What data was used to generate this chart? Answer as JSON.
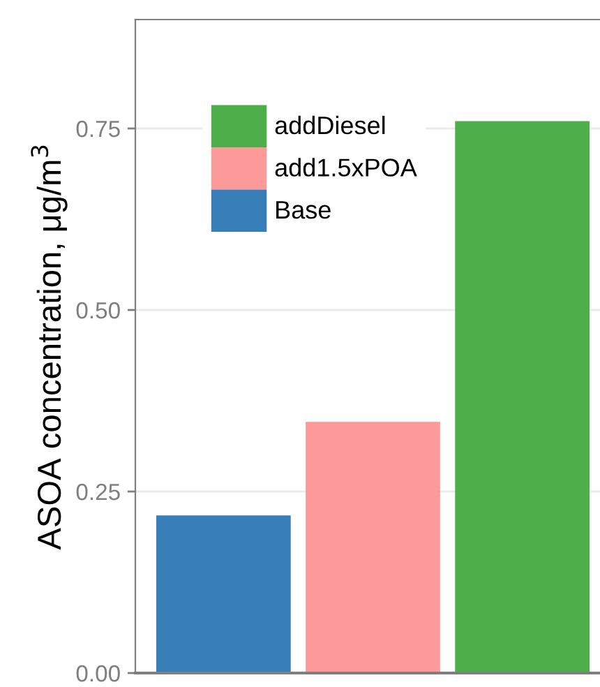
{
  "chart_data": {
    "type": "bar",
    "ylabel": "ASOA concentration, μg/m$^{3}$",
    "categories": [
      null,
      null,
      null
    ],
    "series": [
      {
        "name": "Base",
        "color": "#377eb8",
        "values": [
          0.217,
          null,
          null
        ]
      },
      {
        "name": "add1.5xPOA",
        "color": "#fb9a99",
        "values": [
          null,
          0.346,
          null
        ]
      },
      {
        "name": "addDiesel",
        "color": "#4daf4a",
        "values": [
          null,
          null,
          0.76
        ]
      }
    ],
    "ylim": [
      0,
      0.9
    ],
    "yticks": [
      {
        "value": 0,
        "label": "0.00"
      },
      {
        "value": 0.25,
        "label": "0.25"
      },
      {
        "value": 0.5,
        "label": "0.50"
      },
      {
        "value": 0.75,
        "label": "0.75"
      }
    ],
    "grid": "y",
    "legend": "top left"
  }
}
